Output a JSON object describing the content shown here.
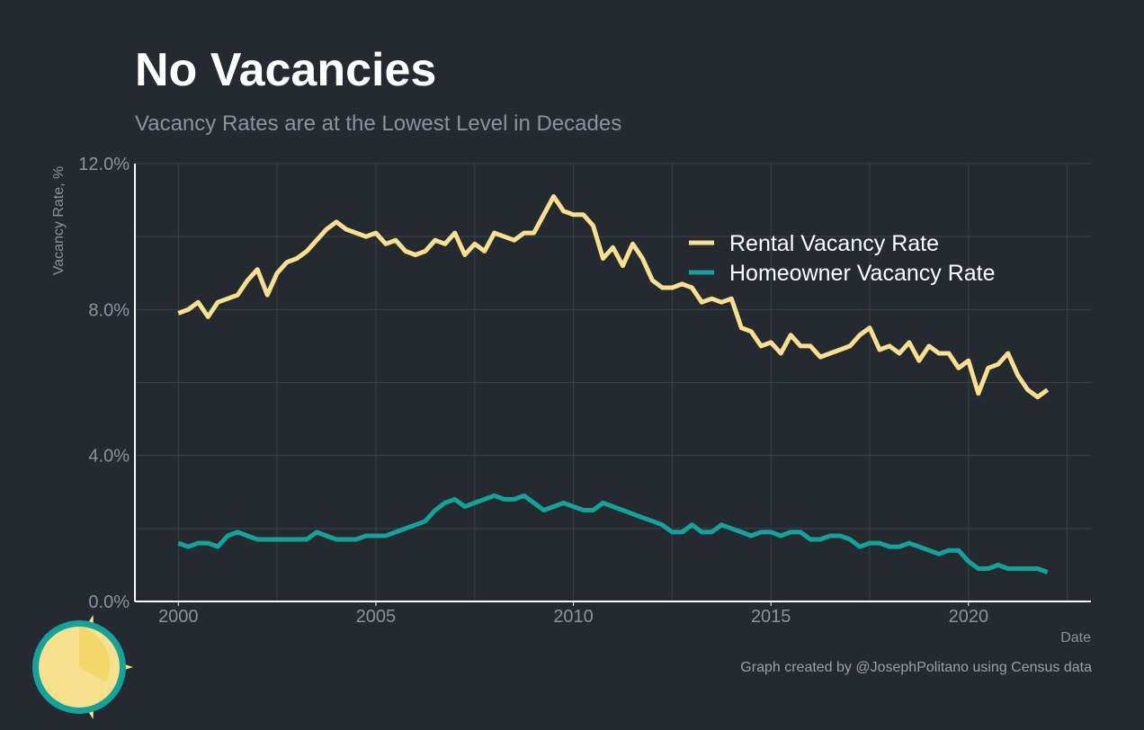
{
  "title": "No Vacancies",
  "subtitle": "Vacancy Rates are at the Lowest Level in Decades",
  "caption": "Graph created by @JosephPolitano using Census data",
  "logo_icon": "sun-icon",
  "chart_data": {
    "type": "line",
    "title": "No Vacancies",
    "subtitle": "Vacancy Rates are at the Lowest Level in Decades",
    "xlabel": "Date",
    "ylabel": "Vacancy Rate, %",
    "xlim": [
      1998.9,
      2023.1
    ],
    "ylim": [
      0,
      12
    ],
    "x_ticks": [
      2000,
      2005,
      2010,
      2015,
      2020
    ],
    "x_tick_labels": [
      "2000",
      "2005",
      "2010",
      "2015",
      "2020"
    ],
    "y_ticks": [
      0,
      4,
      8,
      12
    ],
    "y_tick_labels": [
      "0.0%",
      "4.0%",
      "8.0%",
      "12.0%"
    ],
    "grid": true,
    "legend_position": "upper-right",
    "x": [
      2000.0,
      2000.25,
      2000.5,
      2000.75,
      2001.0,
      2001.25,
      2001.5,
      2001.75,
      2002.0,
      2002.25,
      2002.5,
      2002.75,
      2003.0,
      2003.25,
      2003.5,
      2003.75,
      2004.0,
      2004.25,
      2004.5,
      2004.75,
      2005.0,
      2005.25,
      2005.5,
      2005.75,
      2006.0,
      2006.25,
      2006.5,
      2006.75,
      2007.0,
      2007.25,
      2007.5,
      2007.75,
      2008.0,
      2008.25,
      2008.5,
      2008.75,
      2009.0,
      2009.25,
      2009.5,
      2009.75,
      2010.0,
      2010.25,
      2010.5,
      2010.75,
      2011.0,
      2011.25,
      2011.5,
      2011.75,
      2012.0,
      2012.25,
      2012.5,
      2012.75,
      2013.0,
      2013.25,
      2013.5,
      2013.75,
      2014.0,
      2014.25,
      2014.5,
      2014.75,
      2015.0,
      2015.25,
      2015.5,
      2015.75,
      2016.0,
      2016.25,
      2016.5,
      2016.75,
      2017.0,
      2017.25,
      2017.5,
      2017.75,
      2018.0,
      2018.25,
      2018.5,
      2018.75,
      2019.0,
      2019.25,
      2019.5,
      2019.75,
      2020.0,
      2020.25,
      2020.5,
      2020.75,
      2021.0,
      2021.25,
      2021.5,
      2021.75,
      2022.0
    ],
    "series": [
      {
        "name": "Rental Vacancy Rate",
        "color": "#f7e08e",
        "values": [
          7.9,
          8.0,
          8.2,
          7.8,
          8.2,
          8.3,
          8.4,
          8.8,
          9.1,
          8.4,
          9.0,
          9.3,
          9.4,
          9.6,
          9.9,
          10.2,
          10.4,
          10.2,
          10.1,
          10.0,
          10.1,
          9.8,
          9.9,
          9.6,
          9.5,
          9.6,
          9.9,
          9.8,
          10.1,
          9.5,
          9.8,
          9.6,
          10.1,
          10.0,
          9.9,
          10.1,
          10.1,
          10.6,
          11.1,
          10.7,
          10.6,
          10.6,
          10.3,
          9.4,
          9.7,
          9.2,
          9.8,
          9.4,
          8.8,
          8.6,
          8.6,
          8.7,
          8.6,
          8.2,
          8.3,
          8.2,
          8.3,
          7.5,
          7.4,
          7.0,
          7.1,
          6.8,
          7.3,
          7.0,
          7.0,
          6.7,
          6.8,
          6.9,
          7.0,
          7.3,
          7.5,
          6.9,
          7.0,
          6.8,
          7.1,
          6.6,
          7.0,
          6.8,
          6.8,
          6.4,
          6.6,
          5.7,
          6.4,
          6.5,
          6.8,
          6.2,
          5.8,
          5.6,
          5.8
        ]
      },
      {
        "name": "Homeowner Vacancy Rate",
        "color": "#13a39a",
        "values": [
          1.6,
          1.5,
          1.6,
          1.6,
          1.5,
          1.8,
          1.9,
          1.8,
          1.7,
          1.7,
          1.7,
          1.7,
          1.7,
          1.7,
          1.9,
          1.8,
          1.7,
          1.7,
          1.7,
          1.8,
          1.8,
          1.8,
          1.9,
          2.0,
          2.1,
          2.2,
          2.5,
          2.7,
          2.8,
          2.6,
          2.7,
          2.8,
          2.9,
          2.8,
          2.8,
          2.9,
          2.7,
          2.5,
          2.6,
          2.7,
          2.6,
          2.5,
          2.5,
          2.7,
          2.6,
          2.5,
          2.4,
          2.3,
          2.2,
          2.1,
          1.9,
          1.9,
          2.1,
          1.9,
          1.9,
          2.1,
          2.0,
          1.9,
          1.8,
          1.9,
          1.9,
          1.8,
          1.9,
          1.9,
          1.7,
          1.7,
          1.8,
          1.8,
          1.7,
          1.5,
          1.6,
          1.6,
          1.5,
          1.5,
          1.6,
          1.5,
          1.4,
          1.3,
          1.4,
          1.4,
          1.1,
          0.9,
          0.9,
          1.0,
          0.9,
          0.9,
          0.9,
          0.9,
          0.8
        ]
      }
    ]
  }
}
